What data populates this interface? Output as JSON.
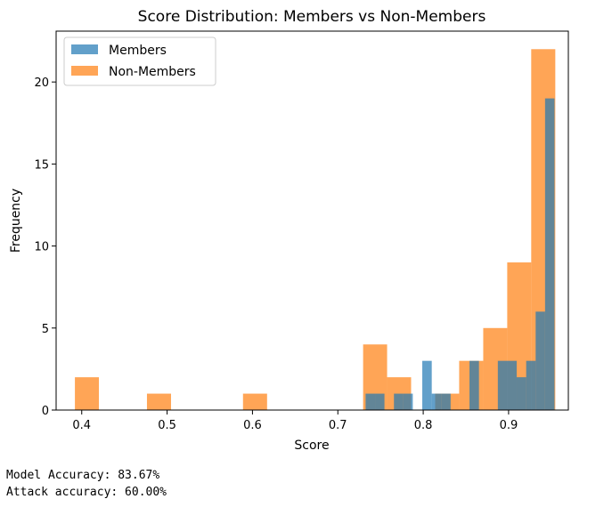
{
  "chart_data": {
    "type": "histogram",
    "title": "Score Distribution: Members vs Non-Members",
    "xlabel": "Score",
    "ylabel": "Frequency",
    "xlim": [
      0.37,
      0.97
    ],
    "ylim": [
      0,
      23.1
    ],
    "xticks": [
      "0.4",
      "0.5",
      "0.6",
      "0.7",
      "0.8",
      "0.9"
    ],
    "yticks": [
      "0",
      "5",
      "10",
      "15",
      "20"
    ],
    "legend": "top-left",
    "series": [
      {
        "name": "Members",
        "color": "#1f77b4",
        "bins": [
          {
            "x0": 0.7325,
            "x1": 0.7436,
            "count": 1
          },
          {
            "x0": 0.7436,
            "x1": 0.7546,
            "count": 1
          },
          {
            "x0": 0.7657,
            "x1": 0.7768,
            "count": 1
          },
          {
            "x0": 0.7768,
            "x1": 0.7878,
            "count": 1
          },
          {
            "x0": 0.7989,
            "x1": 0.81,
            "count": 3
          },
          {
            "x0": 0.81,
            "x1": 0.821,
            "count": 1
          },
          {
            "x0": 0.821,
            "x1": 0.8321,
            "count": 1
          },
          {
            "x0": 0.8542,
            "x1": 0.8653,
            "count": 3
          },
          {
            "x0": 0.8874,
            "x1": 0.8985,
            "count": 3
          },
          {
            "x0": 0.8985,
            "x1": 0.9095,
            "count": 3
          },
          {
            "x0": 0.9095,
            "x1": 0.9206,
            "count": 2
          },
          {
            "x0": 0.9206,
            "x1": 0.9317,
            "count": 3
          },
          {
            "x0": 0.9317,
            "x1": 0.9427,
            "count": 6
          },
          {
            "x0": 0.9427,
            "x1": 0.9538,
            "count": 19
          }
        ]
      },
      {
        "name": "Non-Members",
        "color": "#ff7f0e",
        "bins": [
          {
            "x0": 0.392,
            "x1": 0.4201,
            "count": 2
          },
          {
            "x0": 0.4764,
            "x1": 0.5046,
            "count": 1
          },
          {
            "x0": 0.5889,
            "x1": 0.6171,
            "count": 1
          },
          {
            "x0": 0.7296,
            "x1": 0.7577,
            "count": 4
          },
          {
            "x0": 0.7577,
            "x1": 0.7858,
            "count": 2
          },
          {
            "x0": 0.7858,
            "x1": 0.814,
            "count": 0
          },
          {
            "x0": 0.814,
            "x1": 0.8421,
            "count": 1
          },
          {
            "x0": 0.8421,
            "x1": 0.8703,
            "count": 3
          },
          {
            "x0": 0.8703,
            "x1": 0.8984,
            "count": 5
          },
          {
            "x0": 0.8984,
            "x1": 0.9265,
            "count": 9
          },
          {
            "x0": 0.9265,
            "x1": 0.9547,
            "count": 22
          }
        ]
      }
    ]
  },
  "output": {
    "line1": "Model Accuracy: 83.67%",
    "line2": "Attack accuracy: 60.00%"
  }
}
